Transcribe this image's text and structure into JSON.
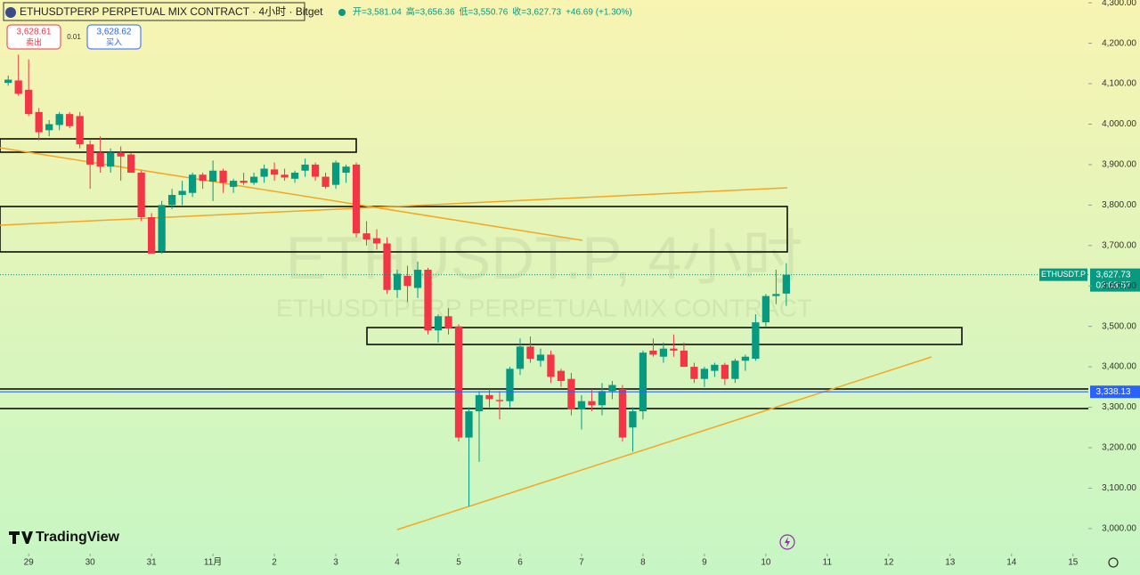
{
  "header": {
    "title": "ETHUSDTPERP PERPETUAL MIX CONTRACT · 4小时 · Bitget",
    "ohlc": [
      "开=3,581.04",
      "高=3,656.36",
      "低=3,550.76",
      "收=3,627.73",
      "+46.69 (+1.30%)"
    ],
    "sell": {
      "price": "3,628.61",
      "label": "卖出"
    },
    "spread": "0.01",
    "buy": {
      "price": "3,628.62",
      "label": "买入"
    }
  },
  "watermark": {
    "symbol": "ETHUSDT.P, 4小时",
    "name": "ETHUSDTPERP PERPETUAL MIX CONTRACT"
  },
  "logo": "TradingView",
  "chart_data": {
    "type": "candlestick",
    "up_color": "#089981",
    "down_color": "#f23645",
    "x": [
      -2,
      -1,
      0,
      1,
      2,
      3,
      4,
      5,
      6,
      7,
      8,
      9,
      10,
      11,
      12,
      13,
      14,
      15,
      16,
      17,
      18,
      19,
      20,
      21,
      22,
      23,
      24,
      25,
      26,
      27,
      28,
      29,
      30,
      31,
      32,
      33,
      34,
      35,
      36,
      37,
      38,
      39,
      40,
      41,
      42,
      43,
      44,
      45,
      46,
      47,
      48,
      49,
      50,
      51,
      52,
      53,
      54,
      55,
      56,
      57,
      58,
      59,
      60,
      61,
      62,
      63,
      64,
      65,
      66,
      67,
      68,
      69,
      70,
      71,
      72,
      73,
      74
    ],
    "open": [
      4102,
      4108,
      4085,
      4030,
      3985,
      3998,
      4025,
      4020,
      3950,
      3930,
      3895,
      3930,
      3925,
      3880,
      3770,
      3685,
      3800,
      3825,
      3830,
      3875,
      3858,
      3885,
      3845,
      3860,
      3855,
      3870,
      3888,
      3875,
      3865,
      3885,
      3900,
      3870,
      3850,
      3880,
      3900,
      3730,
      3718,
      3705,
      3590,
      3625,
      3595,
      3640,
      3490,
      3525,
      3500,
      3225,
      3290,
      3330,
      3318,
      3315,
      3395,
      3450,
      3415,
      3430,
      3390,
      3370,
      3295,
      3315,
      3305,
      3340,
      3345,
      3250,
      3290,
      3440,
      3425,
      3445,
      3440,
      3400,
      3370,
      3390,
      3405,
      3370,
      3415,
      3420,
      3510,
      3575,
      3581.04
    ],
    "high": [
      4120,
      4172,
      4160,
      4040,
      4010,
      4030,
      4030,
      4030,
      3960,
      3970,
      3940,
      3945,
      3930,
      3885,
      3780,
      3810,
      3840,
      3860,
      3880,
      3880,
      3910,
      3890,
      3865,
      3880,
      3880,
      3900,
      3905,
      3890,
      3885,
      3915,
      3905,
      3880,
      3910,
      3900,
      3905,
      3760,
      3740,
      3720,
      3640,
      3650,
      3660,
      3645,
      3530,
      3545,
      3505,
      3300,
      3340,
      3345,
      3340,
      3400,
      3470,
      3475,
      3445,
      3440,
      3395,
      3385,
      3330,
      3345,
      3360,
      3365,
      3355,
      3300,
      3440,
      3470,
      3460,
      3480,
      3460,
      3410,
      3400,
      3410,
      3410,
      3420,
      3430,
      3530,
      3580,
      3640,
      3656.36
    ],
    "low": [
      4095,
      4070,
      4020,
      3960,
      3970,
      3985,
      3990,
      3940,
      3840,
      3880,
      3880,
      3860,
      3880,
      3760,
      3680,
      3680,
      3790,
      3800,
      3820,
      3840,
      3810,
      3830,
      3830,
      3850,
      3850,
      3855,
      3860,
      3860,
      3855,
      3870,
      3860,
      3840,
      3840,
      3855,
      3720,
      3700,
      3690,
      3580,
      3570,
      3560,
      3570,
      3480,
      3460,
      3480,
      3215,
      3055,
      3165,
      3300,
      3270,
      3300,
      3380,
      3410,
      3400,
      3360,
      3350,
      3280,
      3245,
      3290,
      3280,
      3320,
      3215,
      3190,
      3270,
      3425,
      3410,
      3425,
      3400,
      3360,
      3350,
      3375,
      3355,
      3360,
      3390,
      3415,
      3500,
      3555,
      3550.76
    ],
    "close": [
      4110,
      4075,
      4025,
      3980,
      4000,
      4025,
      3995,
      3950,
      3900,
      3895,
      3930,
      3920,
      3880,
      3770,
      3680,
      3800,
      3825,
      3835,
      3875,
      3860,
      3885,
      3855,
      3860,
      3855,
      3870,
      3890,
      3875,
      3868,
      3880,
      3900,
      3870,
      3845,
      3905,
      3895,
      3730,
      3715,
      3705,
      3590,
      3630,
      3600,
      3640,
      3490,
      3525,
      3495,
      3225,
      3290,
      3330,
      3320,
      3315,
      3395,
      3450,
      3420,
      3430,
      3375,
      3365,
      3295,
      3315,
      3305,
      3340,
      3355,
      3225,
      3290,
      3435,
      3430,
      3445,
      3440,
      3400,
      3370,
      3395,
      3405,
      3370,
      3415,
      3425,
      3510,
      3575,
      3580,
      3627.73
    ],
    "last_price_label": {
      "value": 3627.73,
      "label": "3,627.73"
    },
    "symbol_tag": "ETHUSDT.P",
    "countdown": "02:03:57",
    "level_line": {
      "value": 3338.13,
      "label": "3,338.13"
    },
    "xlim": [
      -2.8,
      103.5
    ],
    "ylim": [
      2938,
      4307
    ],
    "xticks": [
      {
        "value": 0,
        "label": "29"
      },
      {
        "value": 6,
        "label": "30"
      },
      {
        "value": 12,
        "label": "31"
      },
      {
        "value": 18,
        "label": "11月"
      },
      {
        "value": 24,
        "label": "2"
      },
      {
        "value": 30,
        "label": "3"
      },
      {
        "value": 36,
        "label": "4"
      },
      {
        "value": 42,
        "label": "5"
      },
      {
        "value": 48,
        "label": "6"
      },
      {
        "value": 54,
        "label": "7"
      },
      {
        "value": 60,
        "label": "8"
      },
      {
        "value": 66,
        "label": "9"
      },
      {
        "value": 72,
        "label": "10"
      },
      {
        "value": 78,
        "label": "11"
      },
      {
        "value": 84,
        "label": "12"
      },
      {
        "value": 90,
        "label": "13"
      },
      {
        "value": 96,
        "label": "14"
      },
      {
        "value": 102,
        "label": "15"
      }
    ],
    "yticks": [
      {
        "value": 3000,
        "label": "3,000.00"
      },
      {
        "value": 3100,
        "label": "3,100.00"
      },
      {
        "value": 3200,
        "label": "3,200.00"
      },
      {
        "value": 3300,
        "label": "3,300.00"
      },
      {
        "value": 3400,
        "label": "3,400.00"
      },
      {
        "value": 3500,
        "label": "3,500.00"
      },
      {
        "value": 3600,
        "label": "3,600.00"
      },
      {
        "value": 3700,
        "label": "3,700.00"
      },
      {
        "value": 3800,
        "label": "3,800.00"
      },
      {
        "value": 3900,
        "label": "3,900.00"
      },
      {
        "value": 4000,
        "label": "4,000.00"
      },
      {
        "value": 4100,
        "label": "4,100.00"
      },
      {
        "value": 4200,
        "label": "4,200.00"
      },
      {
        "value": 4300,
        "label": "4,300.00"
      }
    ]
  }
}
